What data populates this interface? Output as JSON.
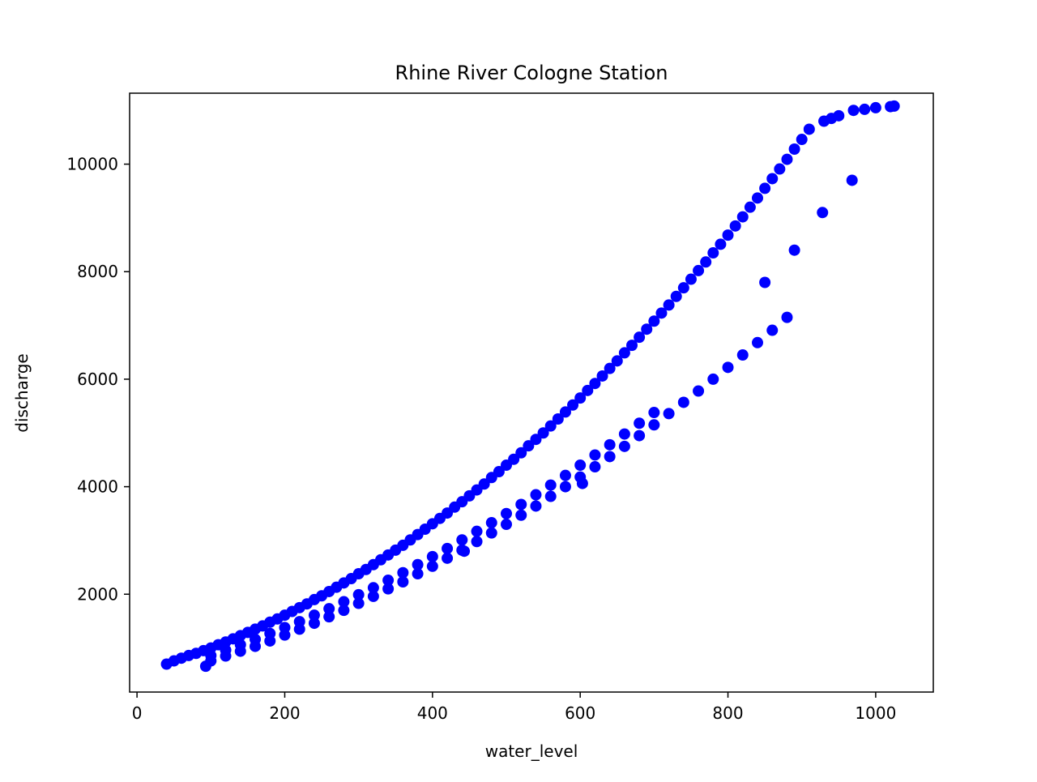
{
  "chart_data": {
    "type": "scatter",
    "title": "Rhine River Cologne Station",
    "xlabel": "water_level",
    "ylabel": "discharge",
    "xlim": [
      -10,
      1078
    ],
    "ylim": [
      180,
      11320
    ],
    "xticks": [
      0,
      200,
      400,
      600,
      800,
      1000
    ],
    "yticks": [
      2000,
      4000,
      6000,
      8000,
      10000
    ],
    "grid": false,
    "legend": "none",
    "marker_color": "#0000ff",
    "series": [
      {
        "x": [
          40,
          50,
          60,
          70,
          80,
          90,
          100,
          110,
          120,
          130,
          140,
          150,
          160,
          170,
          180,
          190,
          200,
          210,
          220,
          230,
          240,
          250,
          260,
          270,
          280,
          290,
          300,
          310,
          320,
          330,
          340,
          350,
          360,
          370,
          380,
          390,
          400,
          410,
          420,
          430,
          440,
          450,
          460,
          470,
          480,
          490,
          500,
          510,
          520,
          530,
          540,
          550,
          560,
          570,
          580,
          590,
          600,
          610,
          620,
          630,
          640,
          650,
          660,
          670,
          680,
          690,
          700,
          710,
          720,
          730,
          740,
          750,
          760,
          770,
          780,
          790,
          800,
          810,
          820,
          830,
          840,
          850,
          860,
          870,
          880,
          890,
          900,
          910,
          930,
          940,
          950,
          970,
          985,
          1000,
          1020,
          1025,
          100,
          120,
          140,
          160,
          180,
          200,
          220,
          240,
          260,
          280,
          300,
          320,
          340,
          360,
          380,
          400,
          420,
          440,
          460,
          480,
          500,
          520,
          540,
          560,
          580,
          600,
          620,
          640,
          660,
          680,
          700,
          720,
          740,
          760,
          780,
          800,
          820,
          840,
          860,
          880,
          100,
          120,
          140,
          160,
          180,
          200,
          220,
          240,
          260,
          280,
          300,
          320,
          340,
          360,
          380,
          400,
          420,
          440,
          460,
          480,
          500,
          520,
          540,
          560,
          580,
          600,
          620,
          640,
          660,
          680,
          700,
          93,
          443,
          603,
          850,
          890,
          928,
          968
        ],
        "y": [
          700,
          760,
          810,
          860,
          900,
          950,
          1000,
          1060,
          1110,
          1170,
          1230,
          1290,
          1350,
          1410,
          1480,
          1540,
          1610,
          1680,
          1750,
          1820,
          1900,
          1970,
          2050,
          2130,
          2210,
          2290,
          2380,
          2460,
          2550,
          2640,
          2730,
          2820,
          2910,
          3010,
          3110,
          3210,
          3310,
          3410,
          3510,
          3620,
          3720,
          3830,
          3940,
          4050,
          4170,
          4280,
          4400,
          4510,
          4630,
          4760,
          4880,
          5000,
          5130,
          5260,
          5390,
          5520,
          5650,
          5790,
          5920,
          6060,
          6200,
          6340,
          6490,
          6630,
          6780,
          6930,
          7080,
          7230,
          7380,
          7540,
          7700,
          7860,
          8020,
          8180,
          8350,
          8510,
          8680,
          8850,
          9020,
          9200,
          9370,
          9550,
          9730,
          9910,
          10090,
          10280,
          10460,
          10650,
          10800,
          10850,
          10900,
          11000,
          11020,
          11050,
          11070,
          11080,
          760,
          850,
          940,
          1030,
          1130,
          1240,
          1350,
          1460,
          1580,
          1700,
          1830,
          1960,
          2100,
          2230,
          2380,
          2520,
          2670,
          2820,
          2980,
          3140,
          3300,
          3470,
          3640,
          3820,
          4000,
          4180,
          4370,
          4560,
          4750,
          4950,
          5150,
          5360,
          5570,
          5780,
          6000,
          6220,
          6450,
          6680,
          6910,
          7150,
          860,
          960,
          1060,
          1160,
          1270,
          1380,
          1490,
          1610,
          1730,
          1860,
          1990,
          2120,
          2260,
          2400,
          2550,
          2700,
          2850,
          3010,
          3170,
          3330,
          3500,
          3670,
          3850,
          4030,
          4210,
          4400,
          4590,
          4780,
          4980,
          5180,
          5380,
          660,
          2800,
          4060,
          7800,
          8400,
          9100,
          9700
        ]
      }
    ]
  }
}
